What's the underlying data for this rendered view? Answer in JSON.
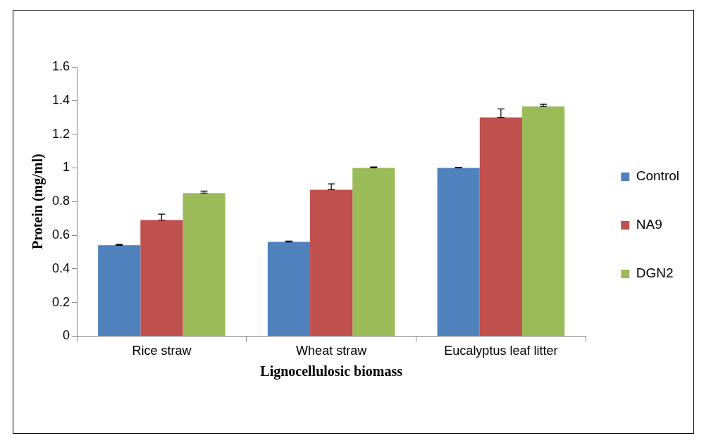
{
  "chart_data": {
    "type": "bar",
    "xlabel": "Lignocellulosic biomass",
    "ylabel": "Protein (mg/ml)",
    "categories": [
      "Rice straw",
      "Wheat straw",
      "Eucalyptus leaf litter"
    ],
    "series": [
      {
        "name": "Control",
        "color": "#4f81bd",
        "values": [
          0.54,
          0.56,
          1.0
        ],
        "errors": [
          [
            0.54,
            0.545
          ],
          [
            0.56,
            0.565
          ],
          [
            1.0,
            1.003
          ]
        ]
      },
      {
        "name": "NA9",
        "color": "#c0504d",
        "values": [
          0.69,
          0.87,
          1.3
        ],
        "errors": [
          [
            0.69,
            0.725
          ],
          [
            0.87,
            0.905
          ],
          [
            1.3,
            1.35
          ]
        ]
      },
      {
        "name": "DGN2",
        "color": "#9bbb59",
        "values": [
          0.85,
          1.0,
          1.365
        ],
        "errors": [
          [
            0.85,
            0.862
          ],
          [
            1.0,
            1.005
          ],
          [
            1.365,
            1.378
          ]
        ]
      }
    ],
    "ylim": [
      0,
      1.6
    ],
    "yticks": [
      0,
      {
        "value": 0.2,
        "label": "0.2"
      },
      {
        "value": 0.4,
        "label": "0.4"
      },
      {
        "value": 0.6,
        "label": "0.6"
      },
      {
        "value": 0.8,
        "label": "0.8"
      },
      1,
      {
        "value": 1.2,
        "label": "1.2"
      },
      {
        "value": 1.4,
        "label": "1.4"
      },
      {
        "value": 1.6,
        "label": "1.6"
      }
    ],
    "grid": false,
    "legend": "right"
  }
}
